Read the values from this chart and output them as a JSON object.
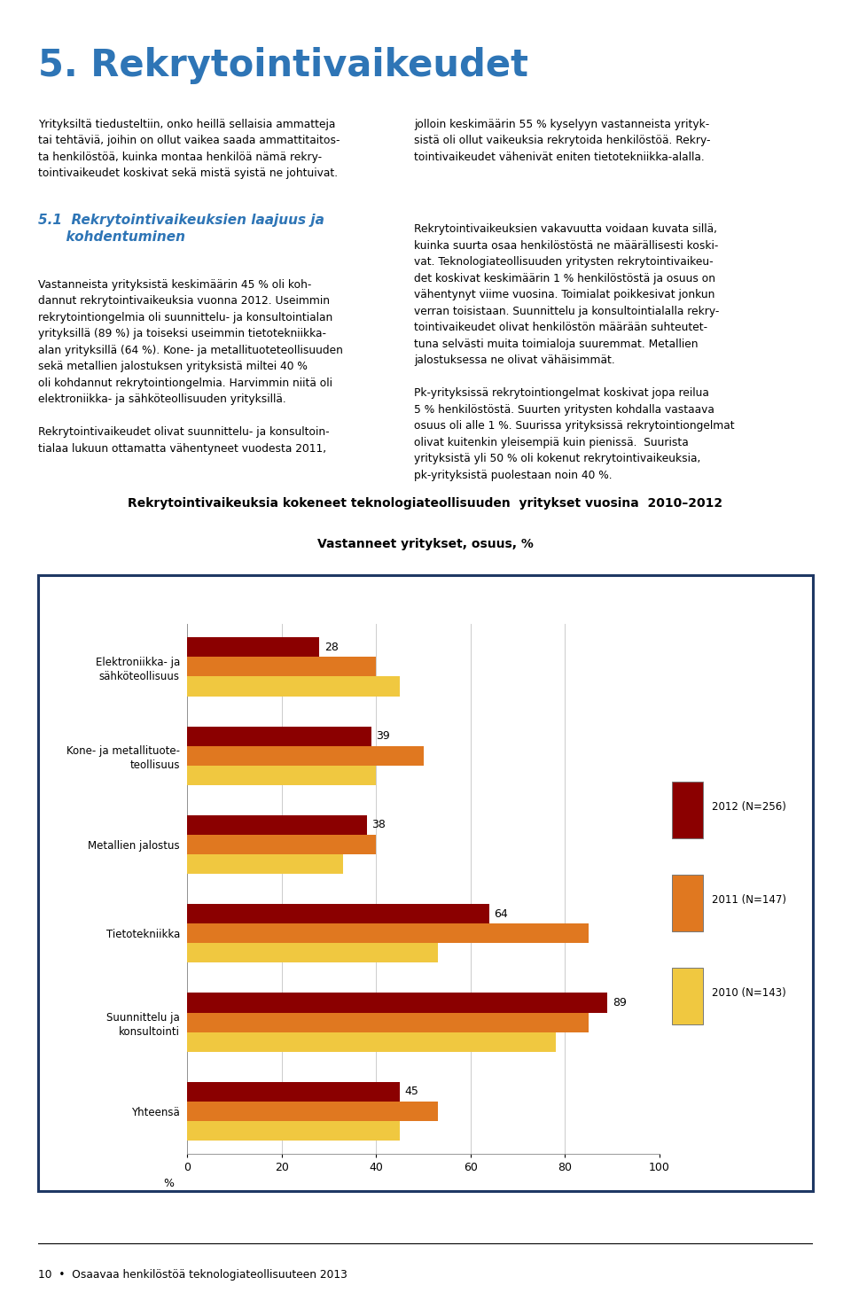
{
  "heading_title": "5. Rekrytointivaikeudet",
  "section_title": "5.1  Rekrytointivaikeuksien laajuus ja kohdentuminen",
  "chart_title1": "Rekrytointivaikeuksia kokeneet teknologiateollisuuden  yritykset vuosina  2010–2012",
  "chart_title2": "Vastanneet yritykset, osuus, %",
  "categories": [
    "Elektroniikka- ja\nsähköteollisuus",
    "Kone- ja metallituote-\nteollisuus",
    "Metallien jalostus",
    "Tietotekniikka",
    "Suunnittelu ja\nkonsultointi",
    "Yhteensä"
  ],
  "values_2012": [
    28,
    39,
    38,
    64,
    89,
    45
  ],
  "values_2011": [
    40,
    50,
    40,
    85,
    85,
    53
  ],
  "values_2010": [
    45,
    40,
    33,
    53,
    78,
    45
  ],
  "color_2012": "#8B0000",
  "color_2011": "#E07820",
  "color_2010": "#F0C840",
  "legend_labels": [
    "2012 (N=256)",
    "2011 (N=147)",
    "2010 (N=143)"
  ],
  "xlabel": "%",
  "xlim": [
    0,
    100
  ],
  "xticks": [
    0,
    20,
    40,
    60,
    80,
    100
  ],
  "page_bg": "#FFFFFF",
  "border_color": "#1F3864",
  "footer_text": "10  •  Osaavaa henkilöstöä teknologiateollisuuteen 2013"
}
